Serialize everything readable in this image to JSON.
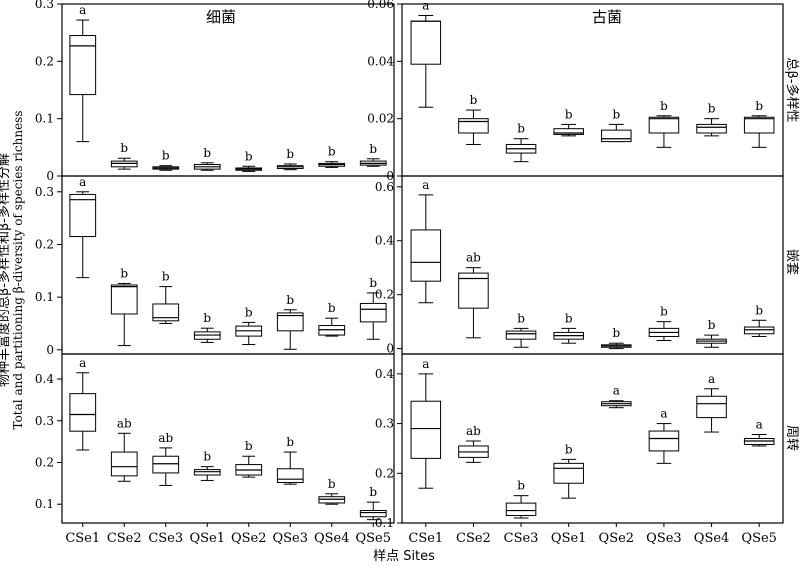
{
  "figure": {
    "y_axis_title_line1": "物种丰富度的总β-多样性和β-多样性分解",
    "y_axis_title_line2": "Total and partitioning β-diversity of species richness",
    "x_axis_title": "样点 Sites",
    "categories": [
      "CSe1",
      "CSe2",
      "CSe3",
      "QSe1",
      "QSe2",
      "QSe3",
      "QSe4",
      "QSe5"
    ],
    "column_titles": [
      "细菌",
      "古菌"
    ],
    "row_labels": [
      "总β-多样性",
      "嵌套",
      "周转"
    ]
  },
  "chart_data": [
    {
      "type": "boxplot",
      "panel": "bacteria-total",
      "column": "细菌",
      "row": "总β-多样性",
      "ylim": [
        0,
        0.3
      ],
      "yticks": [
        "0",
        "0.1",
        "0.2",
        "0.3"
      ],
      "ytick_values": [
        0,
        0.1,
        0.2,
        0.3
      ],
      "categories": [
        "CSe1",
        "CSe2",
        "CSe3",
        "QSe1",
        "QSe2",
        "QSe3",
        "QSe4",
        "QSe5"
      ],
      "boxes": [
        {
          "min": 0.06,
          "q1": 0.142,
          "median": 0.227,
          "q3": 0.245,
          "max": 0.272,
          "letter": "a"
        },
        {
          "min": 0.012,
          "q1": 0.016,
          "median": 0.022,
          "q3": 0.026,
          "max": 0.031,
          "letter": "b"
        },
        {
          "min": 0.01,
          "q1": 0.012,
          "median": 0.014,
          "q3": 0.016,
          "max": 0.018,
          "letter": "b"
        },
        {
          "min": 0.01,
          "q1": 0.012,
          "median": 0.016,
          "q3": 0.02,
          "max": 0.023,
          "letter": "b"
        },
        {
          "min": 0.008,
          "q1": 0.01,
          "median": 0.012,
          "q3": 0.014,
          "max": 0.017,
          "letter": "b"
        },
        {
          "min": 0.011,
          "q1": 0.013,
          "median": 0.016,
          "q3": 0.018,
          "max": 0.021,
          "letter": "b"
        },
        {
          "min": 0.015,
          "q1": 0.017,
          "median": 0.02,
          "q3": 0.022,
          "max": 0.025,
          "letter": "b"
        },
        {
          "min": 0.017,
          "q1": 0.019,
          "median": 0.022,
          "q3": 0.026,
          "max": 0.03,
          "letter": "b"
        }
      ]
    },
    {
      "type": "boxplot",
      "panel": "archaea-total",
      "column": "古菌",
      "row": "总β-多样性",
      "ylim": [
        0,
        0.06
      ],
      "yticks": [
        "0",
        "0.02",
        "0.04",
        "0.06"
      ],
      "ytick_values": [
        0,
        0.02,
        0.04,
        0.06
      ],
      "categories": [
        "CSe1",
        "CSe2",
        "CSe3",
        "QSe1",
        "QSe2",
        "QSe3",
        "QSe4",
        "QSe5"
      ],
      "boxes": [
        {
          "min": 0.024,
          "q1": 0.039,
          "median": 0.054,
          "q3": 0.054,
          "max": 0.056,
          "letter": "a"
        },
        {
          "min": 0.011,
          "q1": 0.015,
          "median": 0.019,
          "q3": 0.02,
          "max": 0.023,
          "letter": "b"
        },
        {
          "min": 0.005,
          "q1": 0.008,
          "median": 0.0095,
          "q3": 0.011,
          "max": 0.013,
          "letter": "b"
        },
        {
          "min": 0.014,
          "q1": 0.0145,
          "median": 0.015,
          "q3": 0.0165,
          "max": 0.018,
          "letter": "b"
        },
        {
          "min": 0.012,
          "q1": 0.012,
          "median": 0.013,
          "q3": 0.016,
          "max": 0.018,
          "letter": "b"
        },
        {
          "min": 0.01,
          "q1": 0.015,
          "median": 0.02,
          "q3": 0.0205,
          "max": 0.021,
          "letter": "b"
        },
        {
          "min": 0.014,
          "q1": 0.015,
          "median": 0.017,
          "q3": 0.018,
          "max": 0.02,
          "letter": "b"
        },
        {
          "min": 0.01,
          "q1": 0.015,
          "median": 0.02,
          "q3": 0.0205,
          "max": 0.021,
          "letter": "b"
        }
      ]
    },
    {
      "type": "boxplot",
      "panel": "bacteria-nested",
      "column": "细菌",
      "row": "嵌套",
      "ylim": [
        -0.008,
        0.33
      ],
      "yticks": [
        "0",
        "0.1",
        "0.2",
        "0.3"
      ],
      "ytick_values": [
        0,
        0.1,
        0.2,
        0.3
      ],
      "categories": [
        "CSe1",
        "CSe2",
        "CSe3",
        "QSe1",
        "QSe2",
        "QSe3",
        "QSe4",
        "QSe5"
      ],
      "boxes": [
        {
          "min": 0.137,
          "q1": 0.215,
          "median": 0.285,
          "q3": 0.295,
          "max": 0.3,
          "letter": "a"
        },
        {
          "min": 0.008,
          "q1": 0.068,
          "median": 0.12,
          "q3": 0.123,
          "max": 0.126,
          "letter": "b"
        },
        {
          "min": 0.05,
          "q1": 0.055,
          "median": 0.061,
          "q3": 0.087,
          "max": 0.12,
          "letter": "b"
        },
        {
          "min": 0.014,
          "q1": 0.02,
          "median": 0.028,
          "q3": 0.034,
          "max": 0.041,
          "letter": "b"
        },
        {
          "min": 0.01,
          "q1": 0.026,
          "median": 0.036,
          "q3": 0.045,
          "max": 0.052,
          "letter": "b"
        },
        {
          "min": 0.001,
          "q1": 0.036,
          "median": 0.065,
          "q3": 0.07,
          "max": 0.076,
          "letter": "b"
        },
        {
          "min": 0.026,
          "q1": 0.028,
          "median": 0.038,
          "q3": 0.046,
          "max": 0.06,
          "letter": "b"
        },
        {
          "min": 0.02,
          "q1": 0.053,
          "median": 0.077,
          "q3": 0.088,
          "max": 0.108,
          "letter": "b"
        }
      ]
    },
    {
      "type": "boxplot",
      "panel": "archaea-nested",
      "column": "古菌",
      "row": "嵌套",
      "ylim": [
        -0.02,
        0.64
      ],
      "yticks": [
        "0",
        "0.2",
        "0.4",
        "0.6"
      ],
      "ytick_values": [
        0,
        0.2,
        0.4,
        0.6
      ],
      "categories": [
        "CSe1",
        "CSe2",
        "CSe3",
        "QSe1",
        "QSe2",
        "QSe3",
        "QSe4",
        "QSe5"
      ],
      "boxes": [
        {
          "min": 0.17,
          "q1": 0.25,
          "median": 0.32,
          "q3": 0.44,
          "max": 0.57,
          "letter": "a"
        },
        {
          "min": 0.04,
          "q1": 0.15,
          "median": 0.26,
          "q3": 0.28,
          "max": 0.3,
          "letter": "ab"
        },
        {
          "min": 0.005,
          "q1": 0.035,
          "median": 0.055,
          "q3": 0.065,
          "max": 0.075,
          "letter": "b"
        },
        {
          "min": 0.02,
          "q1": 0.035,
          "median": 0.048,
          "q3": 0.06,
          "max": 0.075,
          "letter": "b"
        },
        {
          "min": 0.0,
          "q1": 0.005,
          "median": 0.01,
          "q3": 0.014,
          "max": 0.02,
          "letter": "b"
        },
        {
          "min": 0.03,
          "q1": 0.045,
          "median": 0.06,
          "q3": 0.075,
          "max": 0.1,
          "letter": "b"
        },
        {
          "min": 0.005,
          "q1": 0.02,
          "median": 0.028,
          "q3": 0.035,
          "max": 0.05,
          "letter": "b"
        },
        {
          "min": 0.045,
          "q1": 0.055,
          "median": 0.07,
          "q3": 0.08,
          "max": 0.105,
          "letter": "b"
        }
      ]
    },
    {
      "type": "boxplot",
      "panel": "bacteria-turnover",
      "column": "细菌",
      "row": "周转",
      "ylim": [
        0.055,
        0.46
      ],
      "yticks": [
        "0.1",
        "0.2",
        "0.3",
        "0.4"
      ],
      "ytick_values": [
        0.1,
        0.2,
        0.3,
        0.4
      ],
      "categories": [
        "CSe1",
        "CSe2",
        "CSe3",
        "QSe1",
        "QSe2",
        "QSe3",
        "QSe4",
        "QSe5"
      ],
      "boxes": [
        {
          "min": 0.23,
          "q1": 0.275,
          "median": 0.315,
          "q3": 0.365,
          "max": 0.415,
          "letter": "a"
        },
        {
          "min": 0.155,
          "q1": 0.168,
          "median": 0.19,
          "q3": 0.225,
          "max": 0.27,
          "letter": "ab"
        },
        {
          "min": 0.145,
          "q1": 0.175,
          "median": 0.197,
          "q3": 0.215,
          "max": 0.235,
          "letter": "ab"
        },
        {
          "min": 0.157,
          "q1": 0.17,
          "median": 0.178,
          "q3": 0.183,
          "max": 0.19,
          "letter": "b"
        },
        {
          "min": 0.165,
          "q1": 0.17,
          "median": 0.182,
          "q3": 0.195,
          "max": 0.215,
          "letter": "b"
        },
        {
          "min": 0.148,
          "q1": 0.152,
          "median": 0.16,
          "q3": 0.185,
          "max": 0.225,
          "letter": "b"
        },
        {
          "min": 0.1,
          "q1": 0.103,
          "median": 0.112,
          "q3": 0.118,
          "max": 0.125,
          "letter": "b"
        },
        {
          "min": 0.063,
          "q1": 0.07,
          "median": 0.08,
          "q3": 0.085,
          "max": 0.105,
          "letter": "b"
        }
      ]
    },
    {
      "type": "boxplot",
      "panel": "archaea-turnover",
      "column": "古菌",
      "row": "周转",
      "ylim": [
        0.1,
        0.44
      ],
      "yticks": [
        "0.1",
        "0.2",
        "0.3",
        "0.4"
      ],
      "ytick_values": [
        0.1,
        0.2,
        0.3,
        0.4
      ],
      "categories": [
        "CSe1",
        "CSe2",
        "CSe3",
        "QSe1",
        "QSe2",
        "QSe3",
        "QSe4",
        "QSe5"
      ],
      "boxes": [
        {
          "min": 0.17,
          "q1": 0.23,
          "median": 0.29,
          "q3": 0.345,
          "max": 0.4,
          "letter": "a"
        },
        {
          "min": 0.222,
          "q1": 0.232,
          "median": 0.243,
          "q3": 0.255,
          "max": 0.265,
          "letter": "ab"
        },
        {
          "min": 0.11,
          "q1": 0.115,
          "median": 0.125,
          "q3": 0.14,
          "max": 0.155,
          "letter": "b"
        },
        {
          "min": 0.15,
          "q1": 0.18,
          "median": 0.21,
          "q3": 0.22,
          "max": 0.228,
          "letter": "b"
        },
        {
          "min": 0.332,
          "q1": 0.336,
          "median": 0.34,
          "q3": 0.344,
          "max": 0.346,
          "letter": "a"
        },
        {
          "min": 0.22,
          "q1": 0.245,
          "median": 0.27,
          "q3": 0.285,
          "max": 0.3,
          "letter": "a"
        },
        {
          "min": 0.283,
          "q1": 0.312,
          "median": 0.34,
          "q3": 0.355,
          "max": 0.37,
          "letter": "a"
        },
        {
          "min": 0.255,
          "q1": 0.258,
          "median": 0.265,
          "q3": 0.27,
          "max": 0.278,
          "letter": "a"
        }
      ]
    }
  ]
}
